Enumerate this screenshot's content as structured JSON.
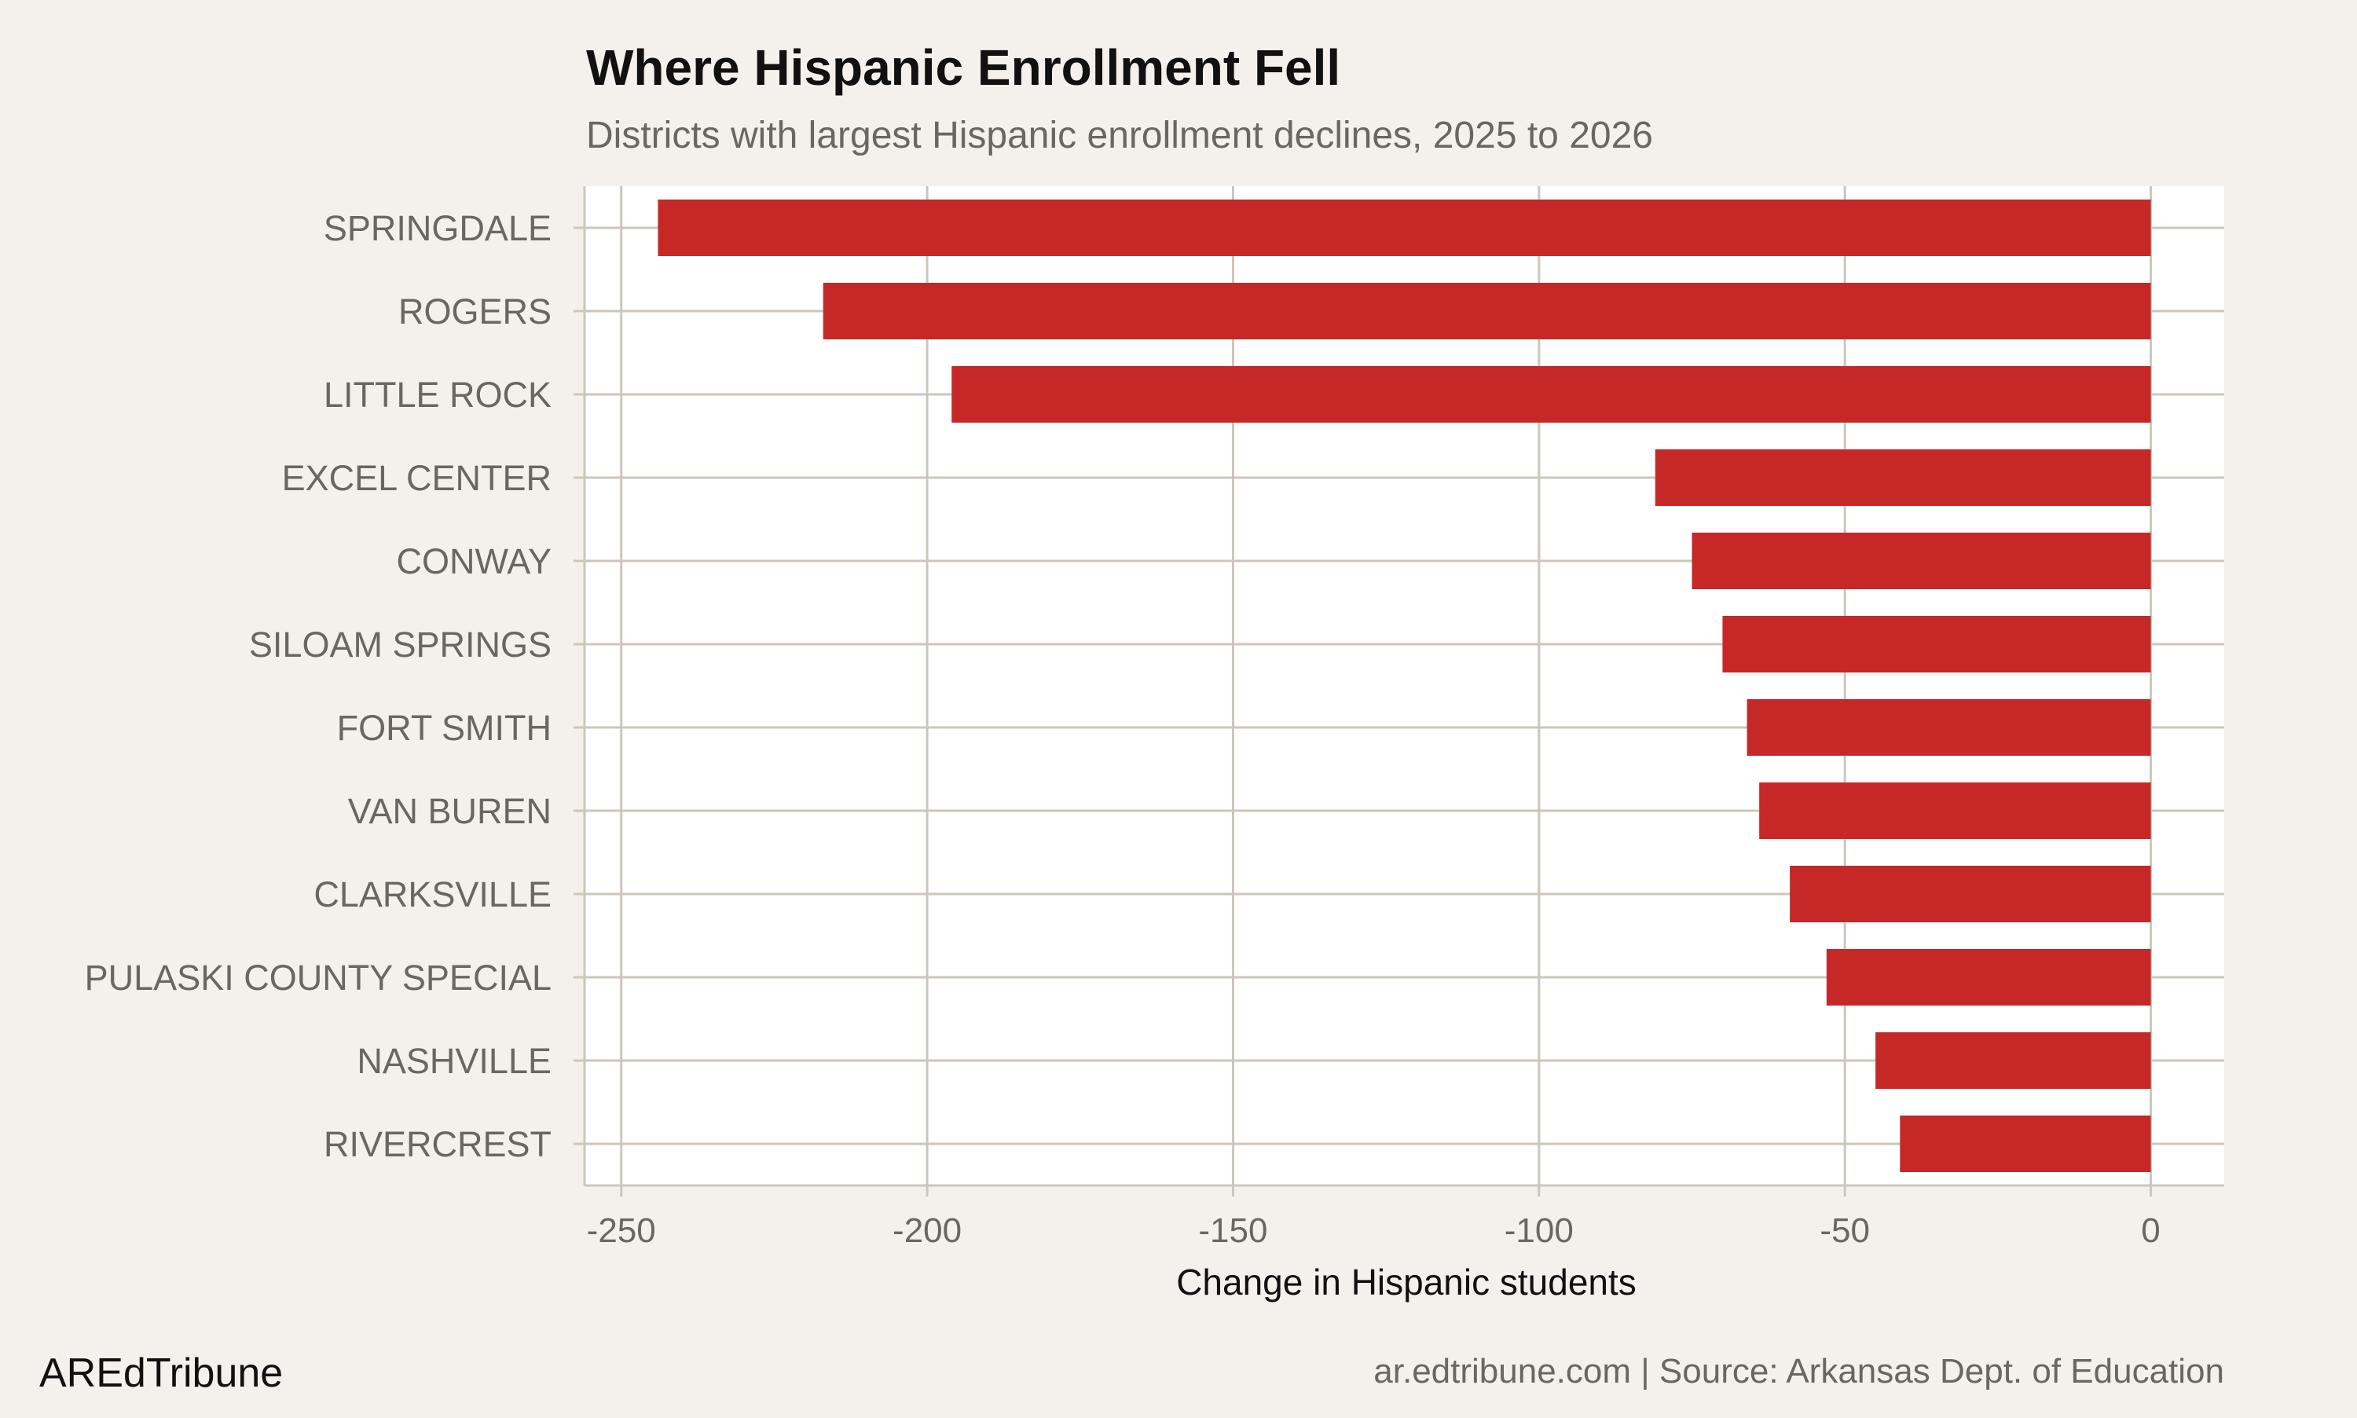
{
  "chart_data": {
    "type": "bar",
    "orientation": "horizontal",
    "title": "Where Hispanic Enrollment Fell",
    "subtitle": "Districts with largest Hispanic enrollment declines, 2025 to 2026",
    "xlabel": "Change in Hispanic students",
    "ylabel": "",
    "categories": [
      "SPRINGDALE",
      "ROGERS",
      "LITTLE ROCK",
      "EXCEL CENTER",
      "CONWAY",
      "SILOAM SPRINGS",
      "FORT SMITH",
      "VAN BUREN",
      "CLARKSVILLE",
      "PULASKI COUNTY SPECIAL",
      "NASHVILLE",
      "RIVERCREST"
    ],
    "values": [
      -244,
      -217,
      -196,
      -81,
      -75,
      -70,
      -66,
      -64,
      -59,
      -53,
      -45,
      -41
    ],
    "xlim": [
      -256,
      12
    ],
    "xticks": [
      -250,
      -200,
      -150,
      -100,
      -50,
      0
    ],
    "xtick_labels": [
      "-250",
      "-200",
      "-150",
      "-100",
      "-50",
      "0"
    ],
    "grid": true,
    "colors": {
      "bar": "#c62828",
      "background": "#f4f1ec",
      "panel": "#ffffff",
      "grid": "#ccc6bc"
    }
  },
  "footer": {
    "brand": "AREdTribune",
    "source": "ar.edtribune.com | Source: Arkansas Dept. of Education"
  }
}
